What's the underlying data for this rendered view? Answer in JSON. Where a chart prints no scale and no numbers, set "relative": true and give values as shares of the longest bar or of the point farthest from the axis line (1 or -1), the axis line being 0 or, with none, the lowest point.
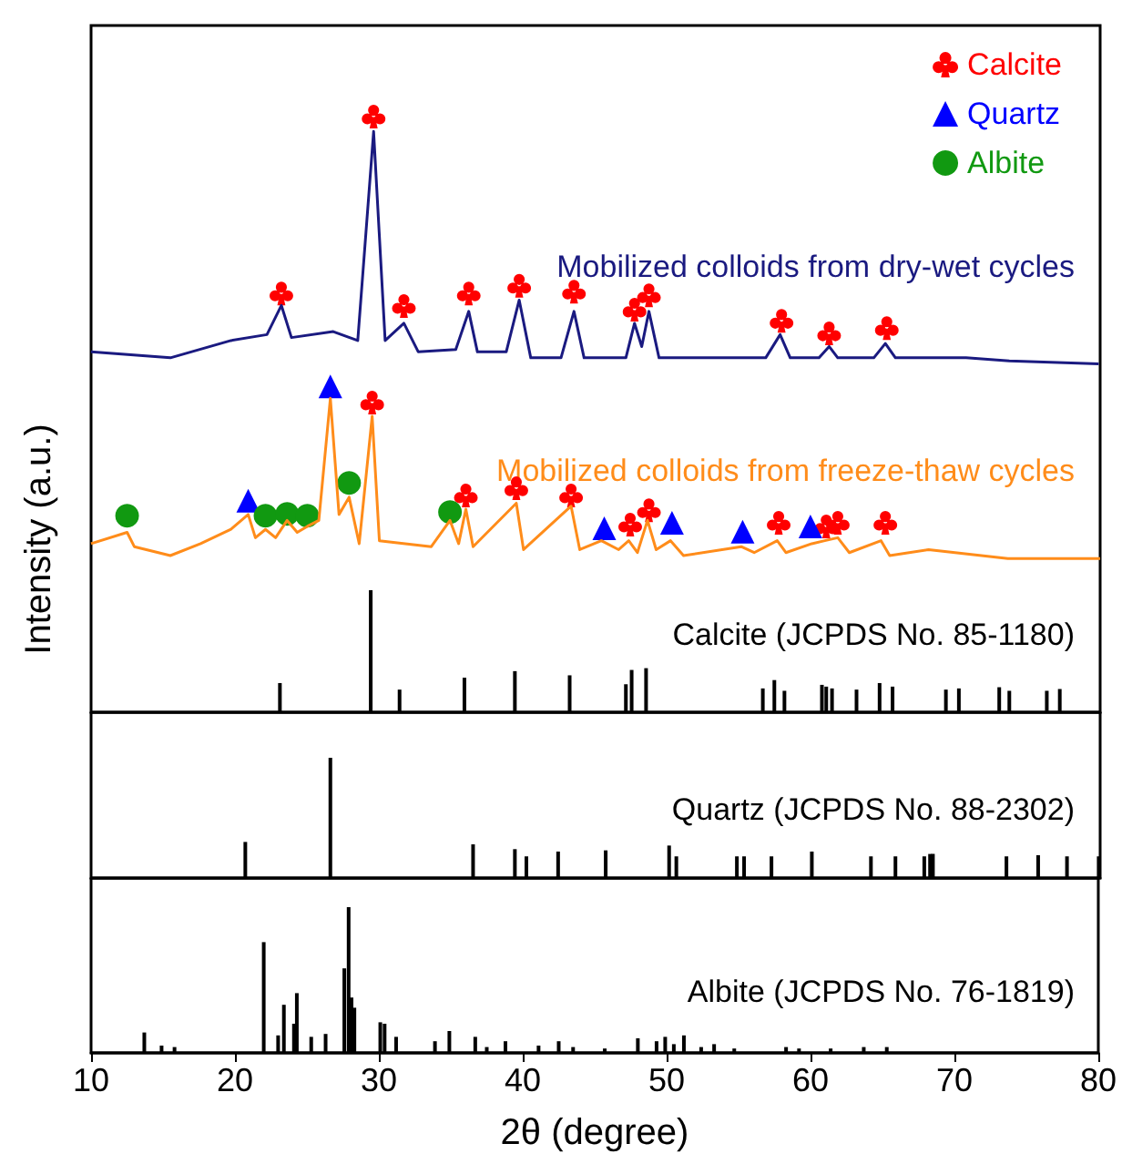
{
  "chart_data": [
    {
      "type": "line",
      "relative": true,
      "ylabel": "Intensity (a.u.)",
      "xlim": [
        10,
        80
      ],
      "tick_labels": false,
      "legend": "top right",
      "series": [
        {
          "name": "Mobilized colloids from dry-wet cycles",
          "color": "#1a1a80",
          "x": [
            10,
            15.5,
            19.7,
            22.2,
            23.2,
            23.9,
            26.8,
            28.5,
            29.6,
            30.4,
            31.7,
            32.7,
            35.3,
            36.2,
            36.8,
            38.8,
            39.7,
            40.5,
            42.6,
            43.5,
            44.2,
            47.1,
            47.7,
            48.2,
            48.7,
            49.4,
            56.8,
            57.8,
            58.5,
            60.5,
            61.2,
            61.8,
            64.3,
            65.1,
            65.8,
            70.7,
            73.7,
            79.9
          ],
          "values": [
            0.605,
            0.595,
            0.624,
            0.634,
            0.683,
            0.629,
            0.639,
            0.624,
            0.975,
            0.624,
            0.653,
            0.605,
            0.609,
            0.673,
            0.605,
            0.605,
            0.692,
            0.595,
            0.595,
            0.673,
            0.595,
            0.595,
            0.653,
            0.614,
            0.673,
            0.595,
            0.595,
            0.634,
            0.595,
            0.595,
            0.614,
            0.595,
            0.595,
            0.619,
            0.595,
            0.595,
            0.59,
            0.585
          ]
        },
        {
          "name": "Mobilized colloids from freeze-thaw cycles",
          "color": "#ff8c1a",
          "x": [
            10,
            12.5,
            13.0,
            15.5,
            17.6,
            19.7,
            20.9,
            21.4,
            22.1,
            22.8,
            23.6,
            24.3,
            25.0,
            25.8,
            26.6,
            27.2,
            27.9,
            28.6,
            29.5,
            30.0,
            33.6,
            34.9,
            35.5,
            36.0,
            36.5,
            39.5,
            40.0,
            43.3,
            43.9,
            45.4,
            46.6,
            47.3,
            47.9,
            48.6,
            49.2,
            50.2,
            51.1,
            55.1,
            56.0,
            57.6,
            58.2,
            60.0,
            60.9,
            61.8,
            62.6,
            64.8,
            65.4,
            68.1,
            73.6,
            80
          ],
          "values": [
            0.283,
            0.302,
            0.278,
            0.263,
            0.283,
            0.307,
            0.332,
            0.293,
            0.307,
            0.293,
            0.322,
            0.302,
            0.312,
            0.322,
            0.527,
            0.332,
            0.361,
            0.283,
            0.497,
            0.288,
            0.278,
            0.322,
            0.283,
            0.341,
            0.278,
            0.351,
            0.273,
            0.346,
            0.273,
            0.288,
            0.273,
            0.288,
            0.268,
            0.322,
            0.273,
            0.288,
            0.263,
            0.278,
            0.268,
            0.288,
            0.268,
            0.283,
            0.288,
            0.293,
            0.268,
            0.288,
            0.263,
            0.273,
            0.258,
            0.258
          ]
        },
        {
          "name": "Calcite (JCPDS No. 85-1180)",
          "type": "bar",
          "color": "#000000",
          "x": [
            23.1,
            29.4,
            31.4,
            35.9,
            39.4,
            43.2,
            47.1,
            47.5,
            48.5,
            56.6,
            57.4,
            58.1,
            60.7,
            61.0,
            61.4,
            63.1,
            64.7,
            65.6,
            69.3,
            70.2,
            73.0,
            73.7,
            76.3,
            77.2
          ],
          "values": [
            0.049,
            0.205,
            0.038,
            0.058,
            0.069,
            0.062,
            0.047,
            0.071,
            0.074,
            0.04,
            0.054,
            0.036,
            0.046,
            0.043,
            0.04,
            0.038,
            0.049,
            0.043,
            0.038,
            0.04,
            0.042,
            0.036,
            0.036,
            0.039
          ]
        },
        {
          "name": "Calcite",
          "type": "scatter",
          "marker": "cross",
          "color": "#ff0000",
          "x": [
            23.2,
            29.6,
            31.7,
            36.2,
            39.7,
            43.5,
            47.7,
            48.7,
            57.9,
            61.2,
            65.2,
            29.5,
            36.0,
            39.5,
            43.3,
            47.4,
            48.7,
            57.7,
            61.0,
            61.8,
            65.1
          ],
          "values": [
            0.703,
            1.0,
            0.682,
            0.703,
            0.716,
            0.706,
            0.676,
            0.7,
            0.657,
            0.636,
            0.645,
            0.52,
            0.364,
            0.376,
            0.364,
            0.315,
            0.339,
            0.318,
            0.312,
            0.318,
            0.318
          ]
        },
        {
          "name": "Quartz",
          "type": "scatter",
          "marker": "triangle",
          "color": "#0000ff",
          "x": [
            20.9,
            26.6,
            45.6,
            50.3,
            55.2,
            59.9
          ],
          "values": [
            0.355,
            0.547,
            0.309,
            0.318,
            0.303,
            0.312
          ]
        },
        {
          "name": "Albite",
          "type": "scatter",
          "marker": "circle",
          "color": "#119911",
          "x": [
            12.5,
            22.1,
            23.6,
            25.0,
            27.9,
            34.9
          ],
          "values": [
            0.33,
            0.33,
            0.333,
            0.33,
            0.385,
            0.336
          ]
        }
      ]
    },
    {
      "type": "bar",
      "relative": true,
      "xlim": [
        10,
        80
      ],
      "tick_labels": false,
      "series": [
        {
          "name": "Quartz (JCPDS No. 88-2302)",
          "color": "#000000",
          "x": [
            20.7,
            26.6,
            36.5,
            39.4,
            40.2,
            42.4,
            45.7,
            50.1,
            50.6,
            54.8,
            55.3,
            57.2,
            60.0,
            64.1,
            65.8,
            67.8,
            68.2,
            68.4,
            73.5,
            75.7,
            77.7,
            79.9
          ],
          "values": [
            0.3,
            1.0,
            0.28,
            0.24,
            0.18,
            0.22,
            0.23,
            0.27,
            0.18,
            0.18,
            0.18,
            0.18,
            0.22,
            0.18,
            0.18,
            0.18,
            0.2,
            0.2,
            0.18,
            0.19,
            0.18,
            0.18
          ]
        }
      ]
    },
    {
      "type": "bar",
      "relative": true,
      "xlabel": "2θ (degree)",
      "xlim": [
        10,
        80
      ],
      "xticks": [
        10,
        20,
        30,
        40,
        50,
        60,
        70,
        80
      ],
      "tick_labels": "x",
      "series": [
        {
          "name": "Albite (JCPDS No. 76-1819)",
          "color": "#000000",
          "x": [
            13.7,
            14.9,
            15.8,
            22.0,
            23.0,
            23.4,
            24.1,
            24.3,
            25.3,
            26.3,
            27.6,
            27.9,
            28.1,
            28.3,
            30.1,
            30.4,
            31.2,
            33.9,
            34.9,
            36.7,
            37.5,
            38.8,
            41.1,
            42.5,
            43.5,
            45.7,
            48.0,
            49.3,
            49.9,
            50.5,
            51.2,
            52.4,
            53.3,
            54.7,
            58.3,
            59.2,
            61.4,
            63.7,
            65.3
          ],
          "values": [
            0.14,
            0.05,
            0.04,
            0.76,
            0.12,
            0.33,
            0.2,
            0.41,
            0.11,
            0.13,
            0.58,
            1.0,
            0.38,
            0.31,
            0.21,
            0.2,
            0.11,
            0.08,
            0.15,
            0.11,
            0.04,
            0.08,
            0.05,
            0.08,
            0.04,
            0.03,
            0.1,
            0.08,
            0.11,
            0.06,
            0.12,
            0.04,
            0.06,
            0.03,
            0.04,
            0.03,
            0.03,
            0.04,
            0.04
          ]
        }
      ]
    }
  ]
}
